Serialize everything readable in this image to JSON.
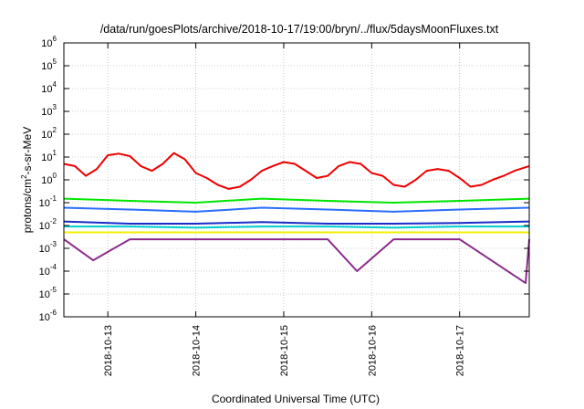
{
  "chart_data": {
    "type": "line",
    "title": "/data/run/goesPlots/archive/2018-10-17/19:00/bryn/../flux/5daysMoonFluxes.txt",
    "xlabel": "Coordinated Universal Time (UTC)",
    "ylabel_parts": [
      "protons/cm",
      "2",
      "-s-sr-MeV"
    ],
    "y_scale": "log",
    "ylim": [
      1e-06,
      1000000.0
    ],
    "y_ticks": [
      {
        "base": "10",
        "exp": "-6"
      },
      {
        "base": "10",
        "exp": "-5"
      },
      {
        "base": "10",
        "exp": "-4"
      },
      {
        "base": "10",
        "exp": "-3"
      },
      {
        "base": "10",
        "exp": "-2"
      },
      {
        "base": "10",
        "exp": "-1"
      },
      {
        "base": "10",
        "exp": "0"
      },
      {
        "base": "10",
        "exp": "1"
      },
      {
        "base": "10",
        "exp": "2"
      },
      {
        "base": "10",
        "exp": "3"
      },
      {
        "base": "10",
        "exp": "4"
      },
      {
        "base": "10",
        "exp": "5"
      },
      {
        "base": "10",
        "exp": "6"
      }
    ],
    "x_range": [
      "2018-10-12T12:00",
      "2018-10-17T19:00"
    ],
    "x_ticks": [
      "2018-10-13",
      "2018-10-14",
      "2018-10-15",
      "2018-10-16",
      "2018-10-17"
    ],
    "grid": true,
    "legend": "none",
    "series": [
      {
        "color": "#ee0000",
        "x": [
          "2018-10-12T12:00",
          "2018-10-12T15:00",
          "2018-10-12T18:00",
          "2018-10-12T21:00",
          "2018-10-13T00:00",
          "2018-10-13T03:00",
          "2018-10-13T06:00",
          "2018-10-13T09:00",
          "2018-10-13T12:00",
          "2018-10-13T15:00",
          "2018-10-13T18:00",
          "2018-10-13T21:00",
          "2018-10-14T00:00",
          "2018-10-14T03:00",
          "2018-10-14T06:00",
          "2018-10-14T09:00",
          "2018-10-14T12:00",
          "2018-10-14T15:00",
          "2018-10-14T18:00",
          "2018-10-14T21:00",
          "2018-10-15T00:00",
          "2018-10-15T03:00",
          "2018-10-15T06:00",
          "2018-10-15T09:00",
          "2018-10-15T12:00",
          "2018-10-15T15:00",
          "2018-10-15T18:00",
          "2018-10-15T21:00",
          "2018-10-16T00:00",
          "2018-10-16T03:00",
          "2018-10-16T06:00",
          "2018-10-16T09:00",
          "2018-10-16T12:00",
          "2018-10-16T15:00",
          "2018-10-16T18:00",
          "2018-10-16T21:00",
          "2018-10-17T00:00",
          "2018-10-17T03:00",
          "2018-10-17T06:00",
          "2018-10-17T09:00",
          "2018-10-17T12:00",
          "2018-10-17T15:00",
          "2018-10-17T19:00"
        ],
        "values": [
          5,
          4,
          1.5,
          3,
          12,
          14,
          11,
          4,
          2.5,
          5,
          15,
          8,
          2,
          1.2,
          0.6,
          0.4,
          0.5,
          1,
          2.5,
          4,
          6,
          5,
          2.5,
          1.2,
          1.5,
          4,
          6,
          5,
          2,
          1.5,
          0.6,
          0.5,
          1,
          2.5,
          3,
          2.5,
          1.2,
          0.5,
          0.6,
          1,
          1.5,
          2.5,
          4
        ]
      },
      {
        "color": "#00e600",
        "x": [
          "2018-10-12T12:00",
          "2018-10-13T06:00",
          "2018-10-14T00:00",
          "2018-10-14T18:00",
          "2018-10-15T12:00",
          "2018-10-16T06:00",
          "2018-10-17T00:00",
          "2018-10-17T19:00"
        ],
        "values": [
          0.15,
          0.12,
          0.1,
          0.15,
          0.12,
          0.1,
          0.12,
          0.15
        ]
      },
      {
        "color": "#2a6cff",
        "x": [
          "2018-10-12T12:00",
          "2018-10-13T06:00",
          "2018-10-14T00:00",
          "2018-10-14T18:00",
          "2018-10-15T12:00",
          "2018-10-16T06:00",
          "2018-10-17T00:00",
          "2018-10-17T19:00"
        ],
        "values": [
          0.06,
          0.05,
          0.04,
          0.06,
          0.05,
          0.04,
          0.05,
          0.06
        ]
      },
      {
        "color": "#1a2cc8",
        "x": [
          "2018-10-12T12:00",
          "2018-10-13T06:00",
          "2018-10-14T00:00",
          "2018-10-14T18:00",
          "2018-10-15T12:00",
          "2018-10-16T06:00",
          "2018-10-17T00:00",
          "2018-10-17T19:00"
        ],
        "values": [
          0.015,
          0.012,
          0.012,
          0.014,
          0.012,
          0.012,
          0.013,
          0.015
        ]
      },
      {
        "color": "#00d0d0",
        "x": [
          "2018-10-12T12:00",
          "2018-10-13T06:00",
          "2018-10-14T00:00",
          "2018-10-14T18:00",
          "2018-10-15T12:00",
          "2018-10-16T06:00",
          "2018-10-17T00:00",
          "2018-10-17T19:00"
        ],
        "values": [
          0.009,
          0.009,
          0.008,
          0.009,
          0.009,
          0.008,
          0.009,
          0.009
        ]
      },
      {
        "color": "#f0f000",
        "x": [
          "2018-10-12T12:00",
          "2018-10-13T06:00",
          "2018-10-14T00:00",
          "2018-10-14T18:00",
          "2018-10-15T12:00",
          "2018-10-16T06:00",
          "2018-10-17T00:00",
          "2018-10-17T19:00"
        ],
        "values": [
          0.005,
          0.005,
          0.005,
          0.005,
          0.005,
          0.005,
          0.005,
          0.005
        ]
      },
      {
        "color": "#8b2a8b",
        "x": [
          "2018-10-12T12:00",
          "2018-10-12T20:00",
          "2018-10-13T06:00",
          "2018-10-14T00:00",
          "2018-10-14T18:00",
          "2018-10-15T12:00",
          "2018-10-15T20:00",
          "2018-10-16T06:00",
          "2018-10-17T00:00",
          "2018-10-17T18:00",
          "2018-10-17T19:00"
        ],
        "values": [
          0.0025,
          0.0003,
          0.0025,
          0.0025,
          0.0025,
          0.0025,
          0.0001,
          0.0025,
          0.0025,
          3e-05,
          0.0025
        ]
      }
    ]
  }
}
